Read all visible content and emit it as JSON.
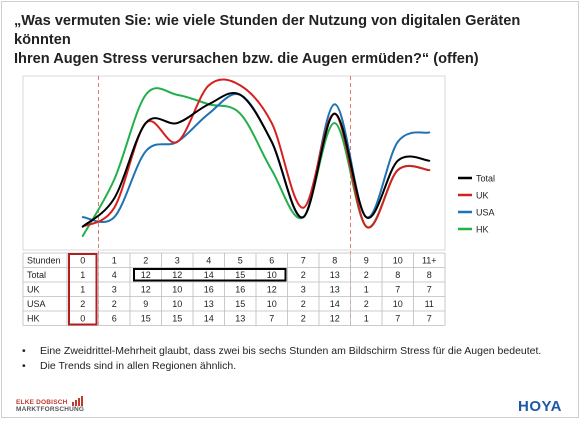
{
  "title": {
    "line1": "„Was vermuten Sie: wie viele Stunden der Nutzung von digitalen Geräten könnten",
    "line2": "Ihren Augen Stress verursachen bzw. die Augen ermüden?“ (offen)"
  },
  "chart_data": {
    "type": "line",
    "smooth": true,
    "categories": [
      "0",
      "1",
      "2",
      "3",
      "4",
      "5",
      "6",
      "7",
      "8",
      "9",
      "10",
      "11+"
    ],
    "series": [
      {
        "name": "Total",
        "color": "#000000",
        "values": [
          1,
          4,
          12,
          12,
          14,
          15,
          10,
          2,
          13,
          2,
          8,
          8
        ]
      },
      {
        "name": "UK",
        "color": "#d62020",
        "values": [
          1,
          3,
          12,
          10,
          16,
          16,
          12,
          3,
          13,
          1,
          7,
          7
        ]
      },
      {
        "name": "USA",
        "color": "#1f72b4",
        "values": [
          2,
          2,
          9,
          10,
          13,
          15,
          10,
          2,
          14,
          2,
          10,
          11
        ]
      },
      {
        "name": "HK",
        "color": "#22b04b",
        "values": [
          0,
          6,
          15,
          15,
          14,
          13,
          7,
          2,
          12,
          1,
          7,
          7
        ]
      }
    ],
    "legend": "right",
    "table_header_label": "Stunden",
    "highlight": {
      "row_label_column": "0",
      "columns": [
        "2",
        "3",
        "4",
        "5",
        "6"
      ],
      "row": "Total"
    },
    "reference_lines_after": [
      "0",
      "8"
    ]
  },
  "bullets": [
    "Eine Zweidrittel-Mehrheit glaubt, dass zwei bis sechs Stunden am Bildschirm Stress für die Augen bedeutet.",
    "Die Trends sind in allen Regionen ähnlich."
  ],
  "logos": {
    "left_line1": "ELKE DOBISCH",
    "left_line2": "MARKTFORSCHUNG",
    "right": "HOYA"
  },
  "colors": {
    "reference_line": "#e07a6a",
    "highlight_box_column": "#b02020",
    "highlight_box_row": "#000000"
  }
}
